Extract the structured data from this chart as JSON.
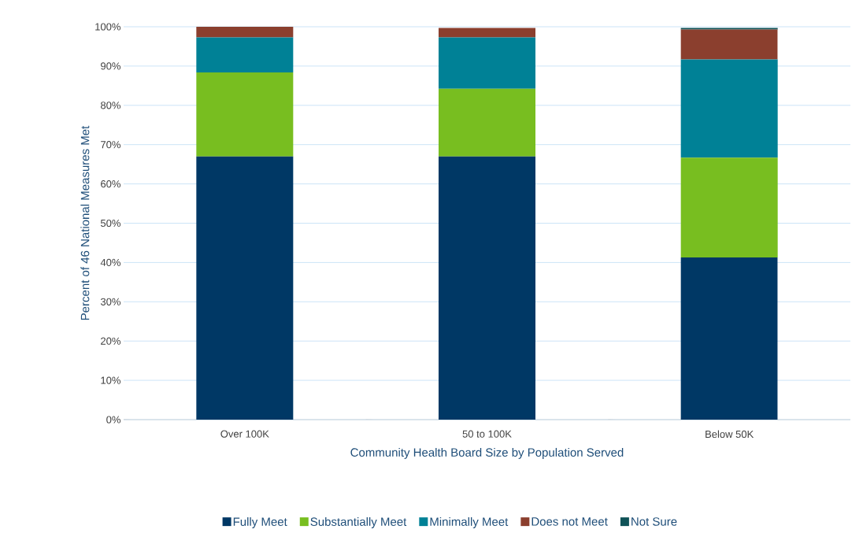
{
  "chart_data": {
    "type": "bar",
    "stacked": true,
    "xlabel": "Community Health Board Size by Population Served",
    "ylabel": "Percent of 46 National Measures Met",
    "categories": [
      "Over 100K",
      "50 to 100K",
      "Below 50K"
    ],
    "series": [
      {
        "name": "Fully Meet",
        "color": "#003865",
        "values": [
          67,
          67,
          41.3
        ]
      },
      {
        "name": "Substantially Meet",
        "color": "#78be20",
        "values": [
          21.4,
          17.2,
          25.4
        ]
      },
      {
        "name": "Minimally Meet",
        "color": "#008196",
        "values": [
          8.9,
          13.1,
          25.0
        ]
      },
      {
        "name": "Does not Meet",
        "color": "#8b3f2e",
        "values": [
          2.7,
          2.4,
          7.6
        ]
      },
      {
        "name": "Not Sure",
        "color": "#0f5257",
        "values": [
          0,
          0,
          0.4
        ]
      }
    ],
    "ylim": [
      0,
      100
    ],
    "yticks": [
      {
        "value": 0,
        "label": "0%"
      },
      {
        "value": 10,
        "label": "10%"
      },
      {
        "value": 20,
        "label": "20%"
      },
      {
        "value": 30,
        "label": "30%"
      },
      {
        "value": 40,
        "label": "40%"
      },
      {
        "value": 50,
        "label": "50%"
      },
      {
        "value": 60,
        "label": "60%"
      },
      {
        "value": 70,
        "label": "70%"
      },
      {
        "value": 80,
        "label": "80%"
      },
      {
        "value": 90,
        "label": "90%"
      },
      {
        "value": 100,
        "label": "100%"
      }
    ],
    "grid": "y",
    "legend": "bottom"
  }
}
